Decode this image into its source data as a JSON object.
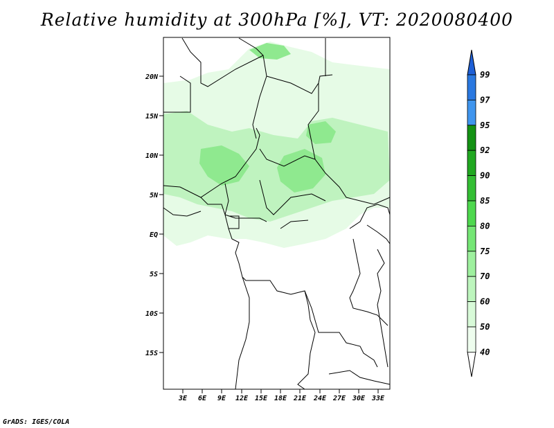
{
  "title": "Relative humidity at 300hPa [%], VT: 2020080400",
  "credit": "GrADS: IGES/COLA",
  "map": {
    "lat_labels": [
      "20N",
      "15N",
      "10N",
      "5N",
      "EQ",
      "5S",
      "10S",
      "15S"
    ],
    "lon_labels": [
      "3E",
      "6E",
      "9E",
      "12E",
      "15E",
      "18E",
      "21E",
      "24E",
      "27E",
      "30E",
      "33E"
    ]
  },
  "colorbar": {
    "labels": [
      "99",
      "97",
      "95",
      "92",
      "90",
      "85",
      "80",
      "75",
      "70",
      "60",
      "50",
      "40"
    ],
    "colors": [
      "#1e5fd6",
      "#2a78e0",
      "#3f95ee",
      "#149214",
      "#21a821",
      "#34be34",
      "#4ed84e",
      "#75e675",
      "#9ef09e",
      "#bdf5bd",
      "#d8fad8",
      "#eefdee"
    ],
    "ranges": [
      "97-99",
      "95-97",
      "92-95",
      "90-92",
      "85-90",
      "80-85",
      "75-80",
      "70-75",
      "60-70",
      "50-60",
      "40-50"
    ]
  },
  "colors": {
    "green_light": "#e6fbe6",
    "green_mid": "#bff3bf",
    "green_strong": "#8fe98f"
  }
}
